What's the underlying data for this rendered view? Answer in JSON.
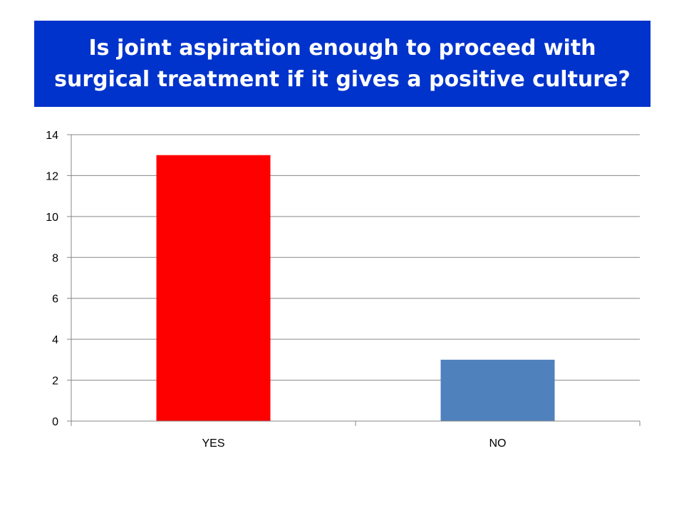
{
  "title": {
    "line1": "Is joint aspiration enough to proceed with",
    "line2": "surgical treatment if it gives a positive culture?",
    "background": "#0033cc",
    "color": "#ffffff"
  },
  "chart_data": {
    "type": "bar",
    "categories": [
      "YES",
      "NO"
    ],
    "values": [
      13,
      3
    ],
    "colors": [
      "#ff0000",
      "#4f81bd"
    ],
    "ylim": [
      0,
      14
    ],
    "yticks": [
      0,
      2,
      4,
      6,
      8,
      10,
      12,
      14
    ],
    "grid": true,
    "legend": "none",
    "xlabel": "",
    "ylabel": ""
  }
}
